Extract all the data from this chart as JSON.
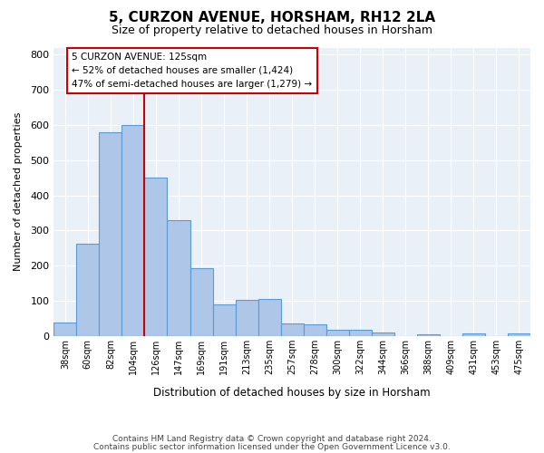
{
  "title": "5, CURZON AVENUE, HORSHAM, RH12 2LA",
  "subtitle": "Size of property relative to detached houses in Horsham",
  "xlabel": "Distribution of detached houses by size in Horsham",
  "ylabel": "Number of detached properties",
  "bar_values": [
    38,
    262,
    580,
    600,
    450,
    330,
    193,
    90,
    102,
    105,
    36,
    32,
    18,
    17,
    11,
    0,
    6,
    0,
    7,
    0,
    7
  ],
  "bar_labels": [
    "38sqm",
    "60sqm",
    "82sqm",
    "104sqm",
    "126sqm",
    "147sqm",
    "169sqm",
    "191sqm",
    "213sqm",
    "235sqm",
    "257sqm",
    "278sqm",
    "300sqm",
    "322sqm",
    "344sqm",
    "366sqm",
    "388sqm",
    "409sqm",
    "431sqm",
    "453sqm",
    "475sqm"
  ],
  "bar_color": "#aec6e8",
  "bar_edge_color": "#5b9bd5",
  "marker_line_color": "#cc0000",
  "annotation_text": "5 CURZON AVENUE: 125sqm\n← 52% of detached houses are smaller (1,424)\n47% of semi-detached houses are larger (1,279) →",
  "annotation_box_color": "#ffffff",
  "annotation_box_edge": "#cc0000",
  "vline_x": 3.5,
  "ylim": [
    0,
    820
  ],
  "yticks": [
    0,
    100,
    200,
    300,
    400,
    500,
    600,
    700,
    800
  ],
  "footer_line1": "Contains HM Land Registry data © Crown copyright and database right 2024.",
  "footer_line2": "Contains public sector information licensed under the Open Government Licence v3.0.",
  "plot_bg_color": "#eaf0f8"
}
